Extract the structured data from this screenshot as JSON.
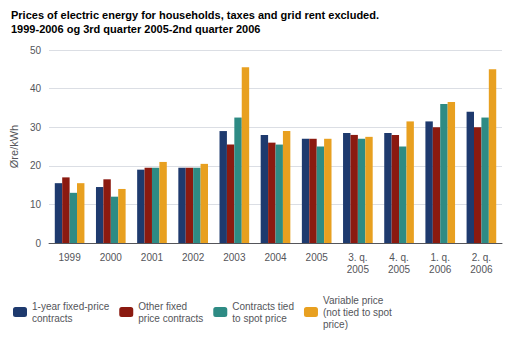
{
  "chart_data": {
    "type": "bar",
    "title": "Prices of electric energy for households, taxes and grid rent excluded.",
    "subtitle": "1999-2006 og 3rd quarter 2005-2nd quarter 2006",
    "ylabel": "Øre/kWh",
    "categories": [
      "1999",
      "2000",
      "2001",
      "2002",
      "2003",
      "2004",
      "2005",
      "3. q.\n2005",
      "4. q.\n2005",
      "1. q.\n2006",
      "2. q.\n2006"
    ],
    "series": [
      {
        "name": "1-year fixed-price\ncontracts",
        "color": "#1e3a6e",
        "values": [
          15.5,
          14.5,
          19.0,
          19.5,
          29.0,
          28.0,
          27.0,
          28.5,
          28.5,
          31.5,
          34.0
        ]
      },
      {
        "name": "Other fixed\nprice contracts",
        "color": "#8b1a10",
        "values": [
          17.0,
          16.5,
          19.5,
          19.5,
          25.5,
          26.0,
          27.0,
          28.0,
          28.0,
          30.0,
          30.0
        ]
      },
      {
        "name": "Contracts tied\nto spot price",
        "color": "#2e8b84",
        "values": [
          13.0,
          12.0,
          19.5,
          19.5,
          32.5,
          25.5,
          25.0,
          27.0,
          25.0,
          36.0,
          32.5
        ]
      },
      {
        "name": "Variable price\n(not tied to spot\nprice)",
        "color": "#e8a020",
        "values": [
          15.5,
          14.0,
          21.0,
          20.5,
          45.5,
          29.0,
          27.0,
          27.5,
          31.5,
          36.5,
          45.0
        ]
      }
    ],
    "ylim": [
      0,
      50
    ],
    "yticks": [
      0,
      10,
      20,
      30,
      40,
      50
    ],
    "grid": true,
    "legend": "lower left"
  }
}
